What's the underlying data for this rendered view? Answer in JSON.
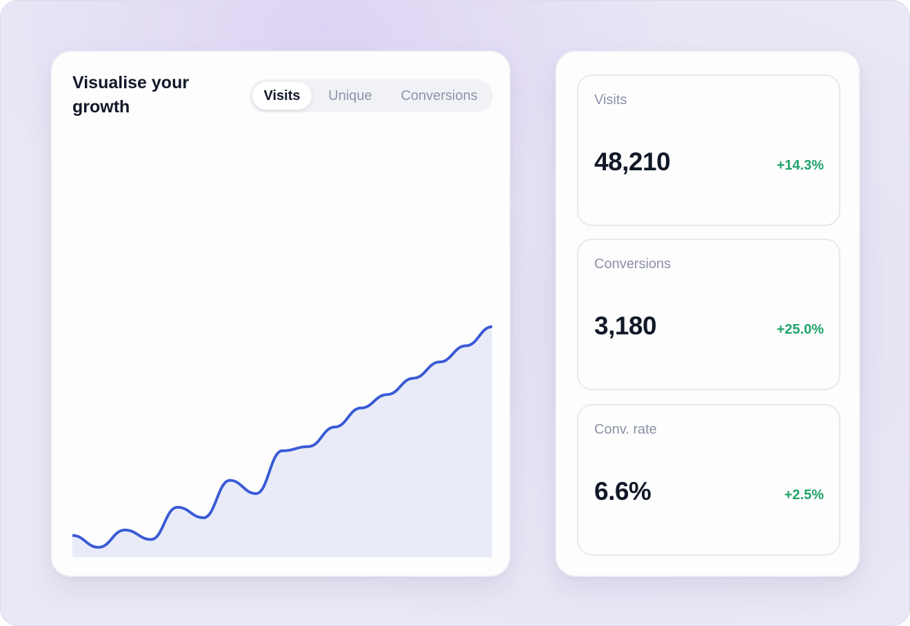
{
  "chart_panel": {
    "title": "Visualise your growth",
    "tabs": [
      {
        "label": "Visits",
        "active": true
      },
      {
        "label": "Unique",
        "active": false
      },
      {
        "label": "Conversions",
        "active": false
      }
    ]
  },
  "chart_data": {
    "type": "area",
    "x": [
      0,
      1,
      2,
      3,
      4,
      5,
      6,
      7,
      8,
      9,
      10,
      11,
      12,
      13,
      14,
      15,
      16
    ],
    "values": [
      8.0,
      3.6,
      10.0,
      6.5,
      18.4,
      14.5,
      28.3,
      23.4,
      39.2,
      40.8,
      48.0,
      55.0,
      60.0,
      66.0,
      72.0,
      78.0,
      85.0
    ],
    "curve": "smooth",
    "line_color": "#3b5bd6",
    "fill_color": "#e9ecf8",
    "ylim": [
      0,
      100
    ],
    "grid": false,
    "title": "",
    "xlabel": "",
    "ylabel": ""
  },
  "stats": [
    {
      "label": "Visits",
      "value": "48,210",
      "delta": "+14.3%"
    },
    {
      "label": "Conversions",
      "value": "3,180",
      "delta": "+25.0%"
    },
    {
      "label": "Conv. rate",
      "value": "6.6%",
      "delta": "+2.5%"
    }
  ],
  "colors": {
    "accent": "#3b5bd6",
    "positive": "#1fa36a",
    "text_primary": "#111827",
    "text_muted": "#8a91a6"
  }
}
